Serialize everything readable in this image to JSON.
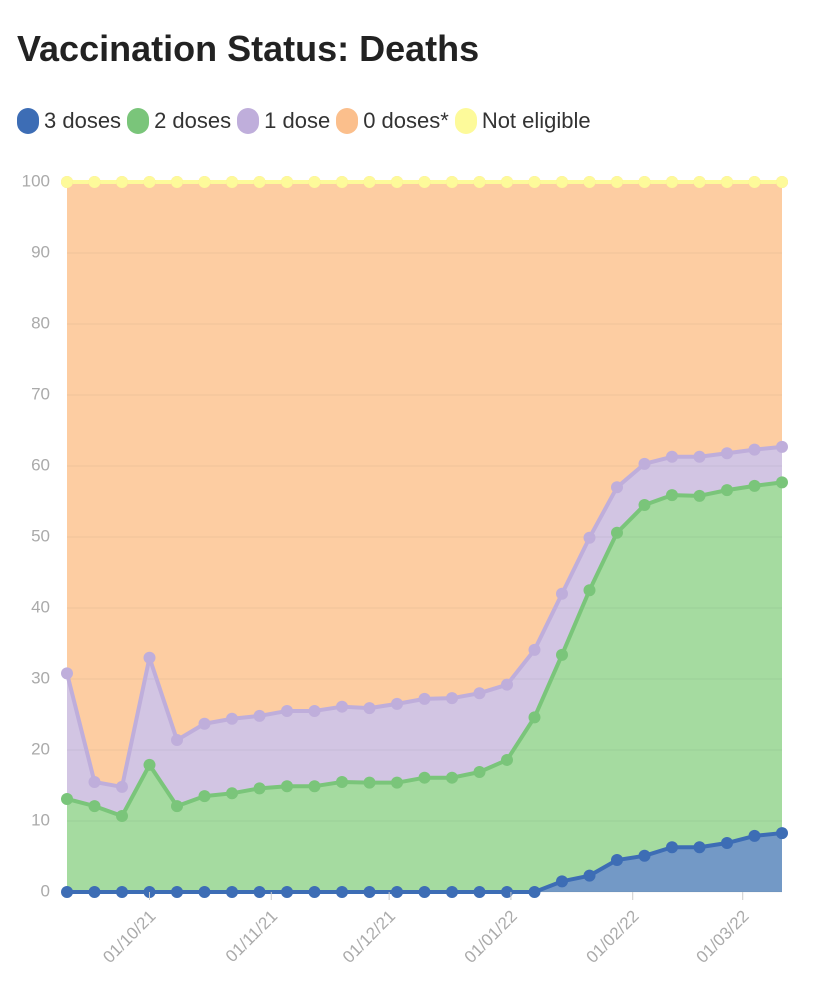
{
  "chart_data": {
    "type": "stacked-area",
    "title": "Vaccination Status: Deaths",
    "x": [
      "2021-09-10",
      "2021-09-17",
      "2021-09-24",
      "2021-10-01",
      "2021-10-08",
      "2021-10-15",
      "2021-10-22",
      "2021-10-29",
      "2021-11-05",
      "2021-11-12",
      "2021-11-19",
      "2021-11-26",
      "2021-12-03",
      "2021-12-10",
      "2021-12-17",
      "2021-12-24",
      "2021-12-31",
      "2022-01-07",
      "2022-01-14",
      "2022-01-21",
      "2022-01-28",
      "2022-02-04",
      "2022-02-11",
      "2022-02-18",
      "2022-02-25",
      "2022-03-04",
      "2022-03-11"
    ],
    "series": [
      {
        "name": "3 doses",
        "color": "#3d6db5",
        "fill": "#7399c6",
        "values": [
          0,
          0,
          0,
          0,
          0,
          0,
          0,
          0,
          0,
          0,
          0,
          0,
          0,
          0,
          0,
          0,
          0,
          0,
          1.5,
          2.3,
          4.5,
          5.1,
          6.3,
          6.3,
          6.9,
          7.9,
          8.3
        ]
      },
      {
        "name": "2 doses",
        "color": "#7ac57a",
        "fill": "#a5dba0",
        "values": [
          13.1,
          12.1,
          10.7,
          17.9,
          12.1,
          13.5,
          13.9,
          14.6,
          14.9,
          14.9,
          15.5,
          15.4,
          15.4,
          16.1,
          16.1,
          16.9,
          18.6,
          24.6,
          31.9,
          40.2,
          46.1,
          49.4,
          49.6,
          49.5,
          49.7,
          49.3,
          49.4
        ]
      },
      {
        "name": "1 dose",
        "color": "#bfaedb",
        "fill": "#d2c5e3",
        "values": [
          17.7,
          3.4,
          4.1,
          15.1,
          9.3,
          10.2,
          10.5,
          10.2,
          10.6,
          10.6,
          10.6,
          10.5,
          11.1,
          11.1,
          11.2,
          11.1,
          10.6,
          9.5,
          8.6,
          7.4,
          6.4,
          5.8,
          5.4,
          5.5,
          5.2,
          5.1,
          5.0
        ]
      },
      {
        "name": "0 doses*",
        "color": "#fbbf8c",
        "fill": "#fdcda2",
        "values": [
          69.2,
          84.5,
          85.2,
          67.0,
          78.6,
          76.3,
          75.6,
          75.2,
          74.5,
          74.5,
          73.9,
          74.1,
          73.5,
          72.8,
          72.7,
          72.0,
          70.8,
          65.9,
          58.0,
          50.1,
          43.0,
          39.7,
          38.7,
          38.7,
          38.2,
          37.7,
          37.3
        ]
      },
      {
        "name": "Not eligible",
        "color": "#fdfa9a",
        "fill": "#fdfa9a",
        "values": [
          0,
          0,
          0,
          0,
          0,
          0,
          0,
          0,
          0,
          0,
          0,
          0,
          0,
          0,
          0,
          0,
          0,
          0,
          0,
          0,
          0,
          0,
          0,
          0,
          0,
          0,
          0
        ]
      }
    ],
    "xlim": [
      "2021-09-10",
      "2022-03-11"
    ],
    "xticks": [
      {
        "value": "2021-10-01",
        "label": "01/10/21"
      },
      {
        "value": "2021-11-01",
        "label": "01/11/21"
      },
      {
        "value": "2021-12-01",
        "label": "01/12/21"
      },
      {
        "value": "2022-01-01",
        "label": "01/01/22"
      },
      {
        "value": "2022-02-01",
        "label": "01/02/22"
      },
      {
        "value": "2022-03-01",
        "label": "01/03/22"
      }
    ],
    "ylim": [
      0,
      100
    ],
    "yticks": [
      0,
      10,
      20,
      30,
      40,
      50,
      60,
      70,
      80,
      90,
      100
    ],
    "grid": true
  }
}
